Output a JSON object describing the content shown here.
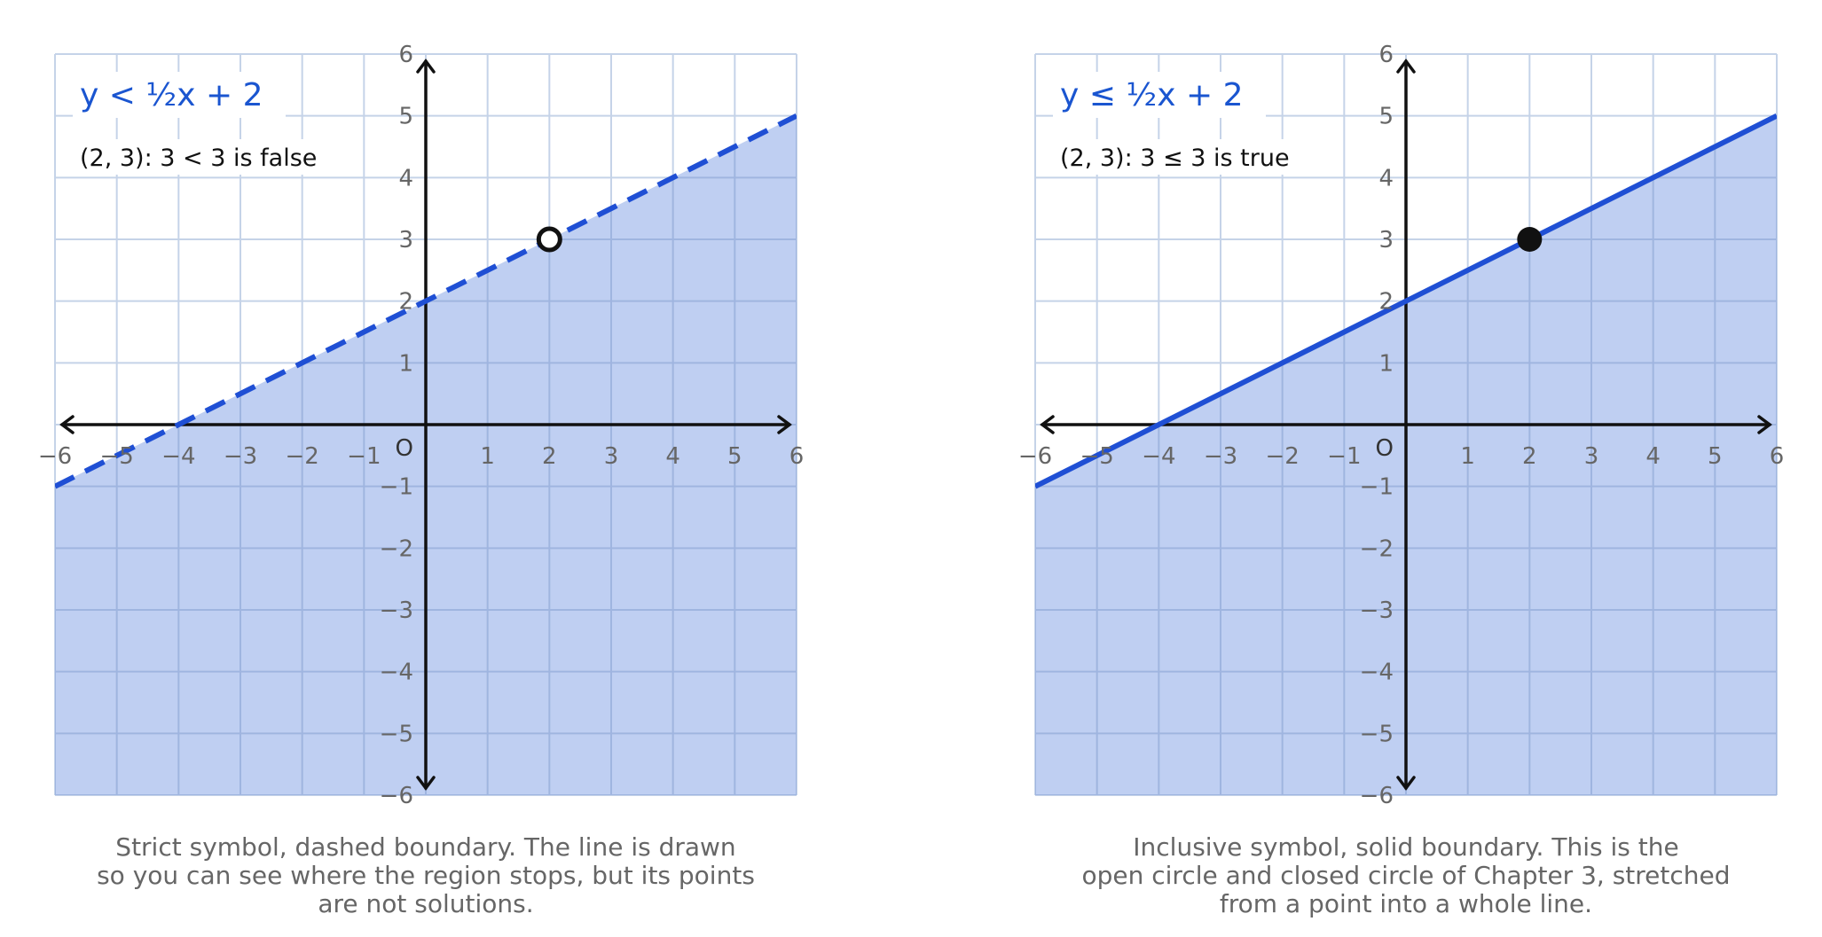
{
  "chart_data": [
    {
      "type": "inequality-graph",
      "title": "y < ½x + 2",
      "annotation": "(2, 3):  3 < 3 is false",
      "xlim": [
        -6,
        6
      ],
      "ylim": [
        -6,
        6
      ],
      "x_tick_labels": [
        "−6",
        "−5",
        "−4",
        "−3",
        "−2",
        "−1",
        "1",
        "2",
        "3",
        "4",
        "5",
        "6"
      ],
      "y_tick_labels": [
        "6",
        "5",
        "4",
        "3",
        "2",
        "1",
        "−1",
        "−2",
        "−3",
        "−4",
        "−5",
        "−6"
      ],
      "origin_label": "O",
      "boundary": {
        "slope": 0.5,
        "intercept": 2,
        "style": "dashed"
      },
      "shaded": "below",
      "test_point": {
        "x": 2,
        "y": 3,
        "marker": "open"
      },
      "grid": true,
      "caption": [
        "Strict symbol, dashed boundary. The line is drawn",
        "so you can see where the region stops, but its points",
        "are not solutions."
      ]
    },
    {
      "type": "inequality-graph",
      "title": "y ≤ ½x + 2",
      "annotation": "(2, 3):  3 ≤ 3 is true",
      "xlim": [
        -6,
        6
      ],
      "ylim": [
        -6,
        6
      ],
      "x_tick_labels": [
        "−6",
        "−5",
        "−4",
        "−3",
        "−2",
        "−1",
        "1",
        "2",
        "3",
        "4",
        "5",
        "6"
      ],
      "y_tick_labels": [
        "6",
        "5",
        "4",
        "3",
        "2",
        "1",
        "−1",
        "−2",
        "−3",
        "−4",
        "−5",
        "−6"
      ],
      "origin_label": "O",
      "boundary": {
        "slope": 0.5,
        "intercept": 2,
        "style": "solid"
      },
      "shaded": "below",
      "test_point": {
        "x": 2,
        "y": 3,
        "marker": "closed"
      },
      "grid": true,
      "caption": [
        "Inclusive symbol, solid boundary. This is the",
        "open circle and closed circle of Chapter 3, stretched",
        "from a point into a whole line."
      ]
    }
  ],
  "colors": {
    "shade": "#bfcff2",
    "grid": "#c5d3e8",
    "grid_shaded": "#9fb5e0",
    "line": "#1f4fd4",
    "axis": "#111111",
    "title": "#1a55d0",
    "tick": "#666666",
    "caption": "#666666"
  }
}
